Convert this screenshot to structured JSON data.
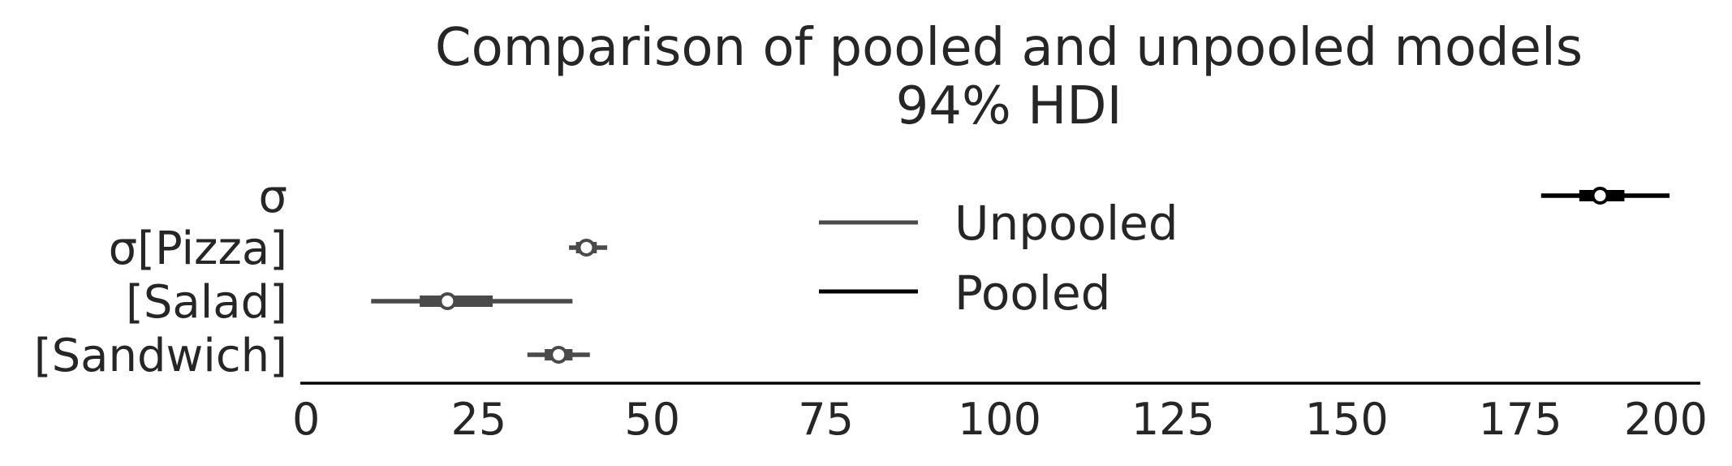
{
  "chart_data": {
    "type": "forest",
    "title": "Comparison of pooled and unpooled models",
    "subtitle": "94% HDI",
    "xlabel": "",
    "ylabel": "",
    "xlim": [
      0,
      200
    ],
    "x_ticks": [
      "0",
      "25",
      "50",
      "75",
      "100",
      "125",
      "150",
      "175",
      "200"
    ],
    "grid": false,
    "legend_position": "center",
    "legend": [
      {
        "name": "Unpooled",
        "color": "#4a4a4a"
      },
      {
        "name": "Pooled",
        "color": "#000000"
      }
    ],
    "rows": [
      {
        "label": "σ",
        "series": "Pooled",
        "point": 186.5,
        "iqr": [
          183.5,
          190
        ],
        "hdi": [
          178,
          196.5
        ]
      },
      {
        "label": "σ[Pizza]",
        "series": "Unpooled",
        "point": 40.5,
        "iqr": [
          39,
          42
        ],
        "hdi": [
          38,
          43.5
        ]
      },
      {
        "label": "[Salad]",
        "series": "Unpooled",
        "point": 20.5,
        "iqr": [
          16.5,
          27
        ],
        "hdi": [
          9.5,
          38.5
        ]
      },
      {
        "label": "[Sandwich]",
        "series": "Unpooled",
        "point": 36.5,
        "iqr": [
          34.5,
          38.5
        ],
        "hdi": [
          32,
          41
        ]
      }
    ]
  }
}
